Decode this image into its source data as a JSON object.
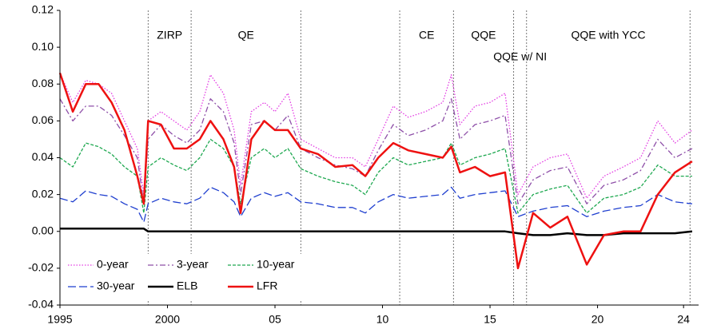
{
  "chart_data": {
    "type": "line",
    "x": [
      1995.0,
      1995.6,
      1996.2,
      1996.8,
      1997.4,
      1998.0,
      1998.6,
      1998.9,
      1999.1,
      1999.7,
      2000.3,
      2000.9,
      2001.5,
      2002.0,
      2002.6,
      2003.1,
      2003.4,
      2003.9,
      2004.5,
      2005.0,
      2005.6,
      2006.2,
      2007.0,
      2007.8,
      2008.6,
      2009.2,
      2009.8,
      2010.5,
      2011.2,
      2012.0,
      2012.8,
      2013.2,
      2013.6,
      2014.3,
      2015.0,
      2015.7,
      2016.3,
      2017.0,
      2017.8,
      2018.6,
      2019.5,
      2020.3,
      2021.2,
      2022.0,
      2022.8,
      2023.6,
      2024.4
    ],
    "series": [
      {
        "name": "0-year",
        "color": "#e33ce3",
        "style": "dotted",
        "values": [
          0.086,
          0.07,
          0.082,
          0.08,
          0.075,
          0.06,
          0.045,
          0.02,
          0.06,
          0.065,
          0.06,
          0.055,
          0.065,
          0.085,
          0.075,
          0.055,
          0.025,
          0.065,
          0.07,
          0.065,
          0.075,
          0.05,
          0.045,
          0.04,
          0.04,
          0.035,
          0.05,
          0.068,
          0.062,
          0.065,
          0.07,
          0.085,
          0.058,
          0.068,
          0.07,
          0.075,
          0.02,
          0.035,
          0.04,
          0.042,
          0.018,
          0.03,
          0.035,
          0.04,
          0.06,
          0.048,
          0.055
        ]
      },
      {
        "name": "3-year",
        "color": "#8e4fa8",
        "style": "dashdot",
        "values": [
          0.072,
          0.06,
          0.068,
          0.068,
          0.063,
          0.052,
          0.04,
          0.015,
          0.05,
          0.058,
          0.052,
          0.048,
          0.055,
          0.072,
          0.065,
          0.048,
          0.02,
          0.058,
          0.06,
          0.055,
          0.063,
          0.045,
          0.04,
          0.036,
          0.034,
          0.03,
          0.044,
          0.058,
          0.052,
          0.055,
          0.06,
          0.072,
          0.05,
          0.058,
          0.06,
          0.063,
          0.015,
          0.028,
          0.033,
          0.035,
          0.015,
          0.025,
          0.028,
          0.033,
          0.05,
          0.04,
          0.045
        ]
      },
      {
        "name": "10-year",
        "color": "#1ea850",
        "style": "dashed",
        "values": [
          0.04,
          0.035,
          0.048,
          0.046,
          0.042,
          0.035,
          0.03,
          0.01,
          0.035,
          0.04,
          0.036,
          0.033,
          0.04,
          0.05,
          0.045,
          0.035,
          0.015,
          0.04,
          0.045,
          0.04,
          0.045,
          0.034,
          0.03,
          0.027,
          0.025,
          0.02,
          0.032,
          0.04,
          0.036,
          0.038,
          0.04,
          0.048,
          0.036,
          0.04,
          0.042,
          0.045,
          0.01,
          0.02,
          0.023,
          0.025,
          0.01,
          0.018,
          0.02,
          0.024,
          0.036,
          0.03,
          0.03
        ]
      },
      {
        "name": "30-year",
        "color": "#1f3fcf",
        "style": "longdash",
        "values": [
          0.018,
          0.016,
          0.022,
          0.02,
          0.019,
          0.015,
          0.012,
          0.005,
          0.015,
          0.018,
          0.016,
          0.015,
          0.018,
          0.024,
          0.021,
          0.016,
          0.008,
          0.018,
          0.021,
          0.019,
          0.021,
          0.016,
          0.015,
          0.013,
          0.013,
          0.01,
          0.016,
          0.02,
          0.018,
          0.019,
          0.02,
          0.024,
          0.018,
          0.02,
          0.021,
          0.022,
          0.008,
          0.011,
          0.013,
          0.014,
          0.008,
          0.011,
          0.013,
          0.014,
          0.02,
          0.016,
          0.015
        ]
      },
      {
        "name": "ELB",
        "color": "#000000",
        "style": "solid",
        "values": [
          0.0015,
          0.0015,
          0.0015,
          0.0015,
          0.0015,
          0.0015,
          0.0015,
          0.0015,
          0.0,
          0.0,
          0.0,
          0.0,
          0.0,
          0.0,
          0.0,
          0.0,
          0.0,
          0.0,
          0.0,
          0.0,
          0.0,
          0.0,
          0.0,
          0.0,
          0.0,
          0.0,
          0.0,
          0.0,
          0.0,
          0.0,
          0.0,
          0.0,
          0.0,
          0.0,
          0.0,
          0.0,
          -0.001,
          -0.002,
          -0.002,
          -0.001,
          -0.002,
          -0.002,
          -0.001,
          -0.001,
          -0.001,
          -0.001,
          0.0
        ]
      },
      {
        "name": "LFR",
        "color": "#ee1111",
        "style": "solid",
        "values": [
          0.086,
          0.065,
          0.08,
          0.08,
          0.07,
          0.055,
          0.03,
          0.015,
          0.06,
          0.058,
          0.045,
          0.045,
          0.05,
          0.06,
          0.05,
          0.035,
          0.01,
          0.05,
          0.06,
          0.055,
          0.055,
          0.045,
          0.042,
          0.035,
          0.036,
          0.03,
          0.04,
          0.048,
          0.044,
          0.042,
          0.04,
          0.046,
          0.032,
          0.035,
          0.03,
          0.032,
          -0.02,
          0.01,
          0.002,
          0.008,
          -0.018,
          -0.002,
          0.0,
          0.0,
          0.02,
          0.032,
          0.038
        ]
      }
    ],
    "regimes": [
      {
        "label": "ZIRP",
        "start": 1999.1,
        "end": 2001.1
      },
      {
        "label": "QE",
        "start": 2001.1,
        "end": 2006.2
      },
      {
        "label": "CE",
        "start": 2010.8,
        "end": 2013.3
      },
      {
        "label": "QQE",
        "start": 2013.3,
        "end": 2016.1
      },
      {
        "label": "QQE w/ NI",
        "start": 2016.1,
        "end": 2016.7
      },
      {
        "label": "QQE with YCC",
        "start": 2016.7,
        "end": 2024.3
      }
    ],
    "xlim": [
      1995,
      2024.7
    ],
    "xticks": [
      1995,
      2000,
      {
        "value": 2005,
        "label": "05"
      },
      {
        "value": 2010,
        "label": "10"
      },
      {
        "value": 2015,
        "label": "15"
      },
      {
        "value": 2020,
        "label": "20"
      },
      {
        "value": 2024,
        "label": "24"
      }
    ],
    "ylim": [
      -0.04,
      0.12
    ],
    "yticks": [
      -0.04,
      -0.02,
      {
        "value": 0,
        "label": "0.00"
      },
      0.02,
      0.04,
      0.06,
      0.08,
      {
        "value": 0.1,
        "label": "0.10"
      },
      0.12
    ],
    "legend": "lower left"
  }
}
